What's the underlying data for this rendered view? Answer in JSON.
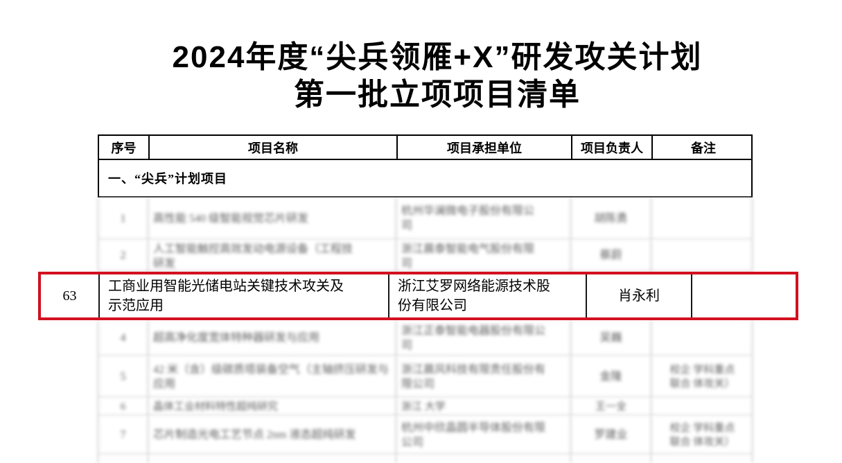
{
  "title": {
    "line1": "2024年度“尖兵领雁+X”研发攻关计划",
    "line2": "第一批立项项目清单"
  },
  "table": {
    "headers": [
      "序号",
      "项目名称",
      "项目承担单位",
      "项目负责人",
      "备注"
    ],
    "section_label": "一、“尖兵”计划项目",
    "blurred_rows": [
      {
        "blurred": true,
        "seq": "1",
        "name": [
          "高性能 540 级智能视觉芯片研发"
        ],
        "unit": [
          "杭州华澜微电子股份有限公",
          "司"
        ],
        "leader": [
          "胡陈勇"
        ],
        "remark": []
      },
      {
        "blurred": true,
        "seq": "2",
        "name": [
          "人工智能触控高效发动电源设备（工程技",
          "研发"
        ],
        "unit": [
          "浙江晨泰智能电气股份有限",
          "司"
        ],
        "leader": [
          "蔡蔚"
        ],
        "remark": []
      },
      {
        "blurred": true,
        "seq": "4",
        "name": [
          "超高净化度宽体特种器研发与应用"
        ],
        "unit": [
          "浙江正泰智能电器股份有限公",
          "司"
        ],
        "leader": [
          "吴巍"
        ],
        "remark": []
      },
      {
        "blurred": true,
        "seq": "5",
        "name": [
          "42 米（含）级碳质塔装备空气（主轴挤压研发与",
          "应用"
        ],
        "unit": [
          "浙江晨风科技有限责任股份有",
          "限公司"
        ],
        "leader": [
          "金隆"
        ],
        "remark": [
          "校企 学科重点",
          "联合 体攻关）"
        ]
      },
      {
        "blurred": true,
        "seq": "6",
        "name": [
          "晶体工业材料特性超纯研究"
        ],
        "unit": [
          "浙江 大学"
        ],
        "leader": [
          "王一全"
        ],
        "remark": []
      },
      {
        "blurred": true,
        "seq": "7",
        "name": [
          "芯片制造光电工艺节点 2nm 液态超纯研发"
        ],
        "unit": [
          "杭州中欣晶圆半导体股份有限",
          "公司"
        ],
        "leader": [
          "罗建业"
        ],
        "remark": [
          "校企 学科重点",
          "联合 体攻关）"
        ]
      }
    ]
  },
  "highlight": {
    "border_color": "#d2101f",
    "seq": "63",
    "name_line1": "工商业用智能光储电站关键技术攻关及",
    "name_line2": "示范应用",
    "unit_line1": "浙江艾罗网络能源技术股",
    "unit_line2": "份有限公司",
    "leader": "肖永利",
    "remark": ""
  }
}
